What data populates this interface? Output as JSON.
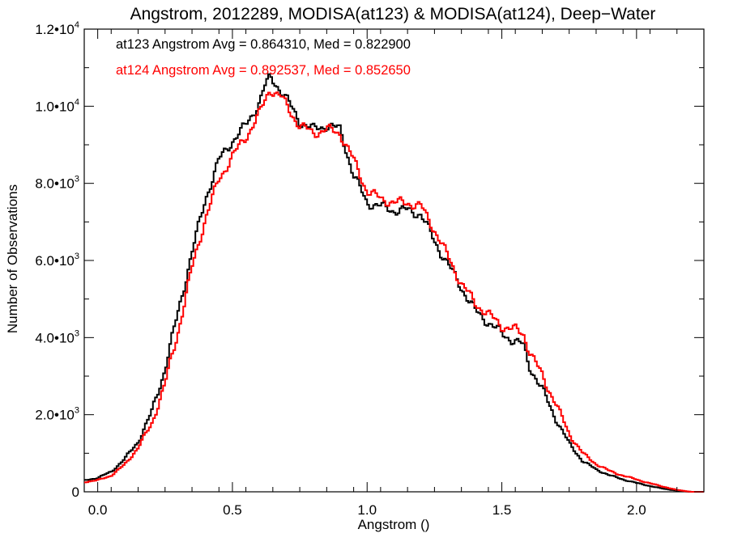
{
  "chart_data": {
    "type": "histogram",
    "title": "Angstrom, 2012289, MODISA(at123) & MODISA(at124), Deep−Water",
    "xlabel": "Angstrom ()",
    "ylabel": "Number of Observations",
    "xlim": [
      -0.05,
      2.25
    ],
    "ylim": [
      0,
      12000
    ],
    "x_ticks": [
      {
        "value": 0.0,
        "label": "0.0"
      },
      {
        "value": 0.5,
        "label": "0.5"
      },
      {
        "value": 1.0,
        "label": "1.0"
      },
      {
        "value": 1.5,
        "label": "1.5"
      },
      {
        "value": 2.0,
        "label": "2.0"
      }
    ],
    "y_ticks": [
      {
        "value": 0,
        "mant": "0",
        "exp": ""
      },
      {
        "value": 2000,
        "mant": "2.0•10",
        "exp": "3"
      },
      {
        "value": 4000,
        "mant": "4.0•10",
        "exp": "3"
      },
      {
        "value": 6000,
        "mant": "6.0•10",
        "exp": "3"
      },
      {
        "value": 8000,
        "mant": "8.0•10",
        "exp": "3"
      },
      {
        "value": 10000,
        "mant": "1.0•10",
        "exp": "4"
      },
      {
        "value": 12000,
        "mant": "1.2•10",
        "exp": "4"
      }
    ],
    "annotations": [
      {
        "text": "at123 Angstrom Avg = 0.864310, Med = 0.822900",
        "color": "#000000"
      },
      {
        "text": "at124 Angstrom Avg = 0.892537, Med = 0.852650",
        "color": "#ff0000"
      }
    ],
    "series": [
      {
        "color": "#000000",
        "points": [
          [
            -0.05,
            300
          ],
          [
            0.0,
            360
          ],
          [
            0.05,
            520
          ],
          [
            0.1,
            850
          ],
          [
            0.15,
            1300
          ],
          [
            0.2,
            2050
          ],
          [
            0.25,
            3200
          ],
          [
            0.3,
            4700
          ],
          [
            0.35,
            6200
          ],
          [
            0.4,
            7600
          ],
          [
            0.45,
            8600
          ],
          [
            0.5,
            9100
          ],
          [
            0.55,
            9500
          ],
          [
            0.6,
            10100
          ],
          [
            0.62,
            10500
          ],
          [
            0.64,
            10750
          ],
          [
            0.66,
            10600
          ],
          [
            0.7,
            10200
          ],
          [
            0.75,
            9600
          ],
          [
            0.8,
            9400
          ],
          [
            0.85,
            9500
          ],
          [
            0.9,
            9400
          ],
          [
            0.95,
            8200
          ],
          [
            1.0,
            7500
          ],
          [
            1.05,
            7400
          ],
          [
            1.1,
            7300
          ],
          [
            1.15,
            7300
          ],
          [
            1.2,
            7200
          ],
          [
            1.25,
            6500
          ],
          [
            1.3,
            5900
          ],
          [
            1.35,
            5300
          ],
          [
            1.4,
            4700
          ],
          [
            1.45,
            4400
          ],
          [
            1.5,
            4100
          ],
          [
            1.55,
            3900
          ],
          [
            1.58,
            3800
          ],
          [
            1.6,
            3300
          ],
          [
            1.65,
            2650
          ],
          [
            1.7,
            1900
          ],
          [
            1.75,
            1250
          ],
          [
            1.8,
            800
          ],
          [
            1.85,
            580
          ],
          [
            1.9,
            430
          ],
          [
            1.95,
            320
          ],
          [
            2.0,
            230
          ],
          [
            2.05,
            150
          ],
          [
            2.1,
            80
          ],
          [
            2.15,
            30
          ],
          [
            2.2,
            0
          ],
          [
            2.25,
            0
          ]
        ]
      },
      {
        "color": "#ff0000",
        "points": [
          [
            -0.05,
            250
          ],
          [
            0.0,
            300
          ],
          [
            0.05,
            420
          ],
          [
            0.1,
            700
          ],
          [
            0.15,
            1150
          ],
          [
            0.2,
            1750
          ],
          [
            0.25,
            2800
          ],
          [
            0.3,
            4200
          ],
          [
            0.35,
            5800
          ],
          [
            0.4,
            7100
          ],
          [
            0.45,
            8100
          ],
          [
            0.5,
            8700
          ],
          [
            0.55,
            9200
          ],
          [
            0.6,
            9800
          ],
          [
            0.64,
            10450
          ],
          [
            0.68,
            10250
          ],
          [
            0.72,
            9800
          ],
          [
            0.75,
            9500
          ],
          [
            0.8,
            9300
          ],
          [
            0.85,
            9400
          ],
          [
            0.9,
            9300
          ],
          [
            0.95,
            8600
          ],
          [
            1.0,
            7800
          ],
          [
            1.05,
            7600
          ],
          [
            1.1,
            7500
          ],
          [
            1.15,
            7500
          ],
          [
            1.2,
            7400
          ],
          [
            1.25,
            6800
          ],
          [
            1.3,
            6100
          ],
          [
            1.35,
            5400
          ],
          [
            1.4,
            4900
          ],
          [
            1.45,
            4600
          ],
          [
            1.5,
            4300
          ],
          [
            1.55,
            4200
          ],
          [
            1.58,
            4100
          ],
          [
            1.6,
            3700
          ],
          [
            1.65,
            3000
          ],
          [
            1.7,
            2300
          ],
          [
            1.75,
            1500
          ],
          [
            1.8,
            1000
          ],
          [
            1.85,
            720
          ],
          [
            1.9,
            540
          ],
          [
            1.95,
            420
          ],
          [
            2.0,
            320
          ],
          [
            2.05,
            220
          ],
          [
            2.1,
            130
          ],
          [
            2.15,
            50
          ],
          [
            2.2,
            0
          ],
          [
            2.25,
            0
          ]
        ]
      }
    ]
  }
}
